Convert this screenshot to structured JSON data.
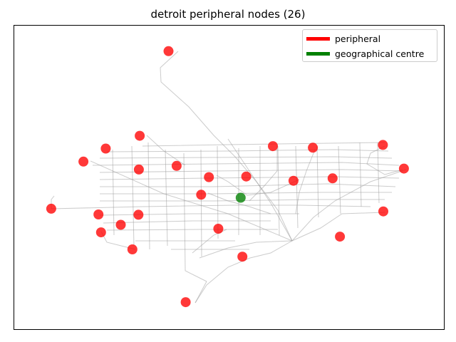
{
  "chart_data": {
    "type": "scatter",
    "title": "detroit peripheral nodes (26)",
    "xlabel": "",
    "ylabel": "",
    "grid": false,
    "axes_ticks": false,
    "legend_placement": "top-right",
    "legend": [
      {
        "label": "peripheral",
        "color": "#ff0000"
      },
      {
        "label": "geographical centre",
        "color": "#008000"
      }
    ],
    "xlim": [
      0,
      100
    ],
    "ylim": [
      0,
      100
    ],
    "series": [
      {
        "name": "peripheral",
        "color": "#ff0000",
        "points": [
          {
            "x": 35.9,
            "y": 91.6
          },
          {
            "x": 29.2,
            "y": 63.7
          },
          {
            "x": 21.3,
            "y": 59.5
          },
          {
            "x": 16.1,
            "y": 55.2
          },
          {
            "x": 29.0,
            "y": 52.6
          },
          {
            "x": 37.8,
            "y": 53.8
          },
          {
            "x": 45.3,
            "y": 50.1
          },
          {
            "x": 54.0,
            "y": 50.3
          },
          {
            "x": 60.2,
            "y": 60.3
          },
          {
            "x": 69.5,
            "y": 59.8
          },
          {
            "x": 85.8,
            "y": 60.7
          },
          {
            "x": 90.7,
            "y": 52.9
          },
          {
            "x": 74.1,
            "y": 49.7
          },
          {
            "x": 65.0,
            "y": 48.9
          },
          {
            "x": 43.5,
            "y": 44.3
          },
          {
            "x": 8.6,
            "y": 39.7
          },
          {
            "x": 19.6,
            "y": 37.8
          },
          {
            "x": 28.9,
            "y": 37.7
          },
          {
            "x": 24.8,
            "y": 34.4
          },
          {
            "x": 20.2,
            "y": 31.9
          },
          {
            "x": 47.5,
            "y": 33.1
          },
          {
            "x": 27.5,
            "y": 26.3
          },
          {
            "x": 53.1,
            "y": 23.9
          },
          {
            "x": 75.8,
            "y": 30.5
          },
          {
            "x": 85.9,
            "y": 38.8
          },
          {
            "x": 39.9,
            "y": 8.9
          }
        ]
      },
      {
        "name": "geographical centre",
        "color": "#008000",
        "points": [
          {
            "x": 52.7,
            "y": 43.3
          }
        ]
      }
    ]
  }
}
